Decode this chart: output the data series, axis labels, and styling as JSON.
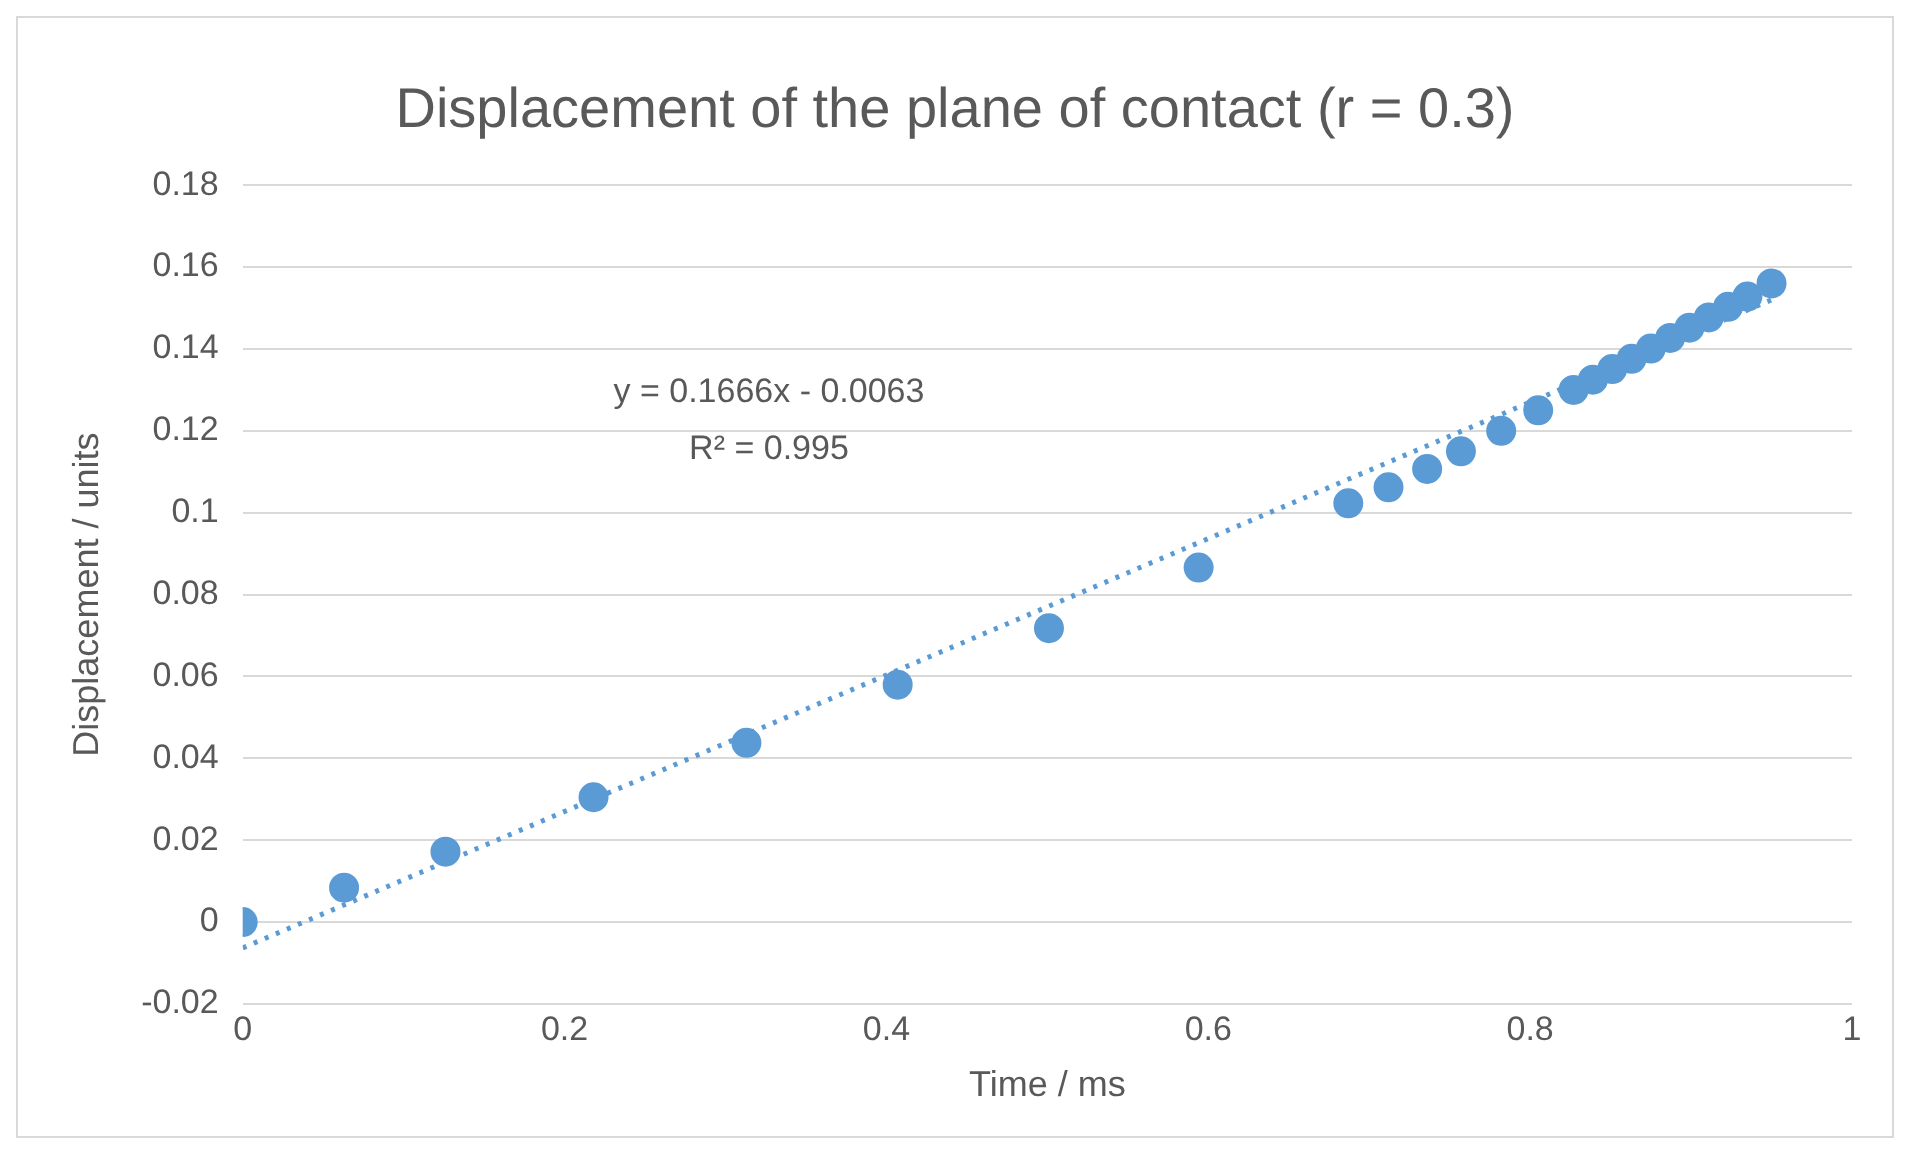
{
  "chart_data": {
    "type": "scatter",
    "title": "Displacement of the plane of contact (r = 0.3)",
    "xlabel": "Time / ms",
    "ylabel": "Displacement / units",
    "xlim": [
      0,
      1
    ],
    "xticks": [
      0,
      0.2,
      0.4,
      0.6,
      0.8,
      1
    ],
    "ylim": [
      -0.02,
      0.18
    ],
    "yticks": [
      -0.02,
      0,
      0.02,
      0.04,
      0.06,
      0.08,
      0.1,
      0.12,
      0.14,
      0.16,
      0.18
    ],
    "grid": "y",
    "legend": false,
    "annotations": [
      "y = 0.1666x - 0.0063",
      "R² = 0.995"
    ],
    "series": [
      {
        "marker": "circle",
        "color": "#5b9bd5",
        "x": [
          0,
          0.063,
          0.126,
          0.218,
          0.313,
          0.407,
          0.501,
          0.594,
          0.687,
          0.712,
          0.736,
          0.757,
          0.782,
          0.805,
          0.827,
          0.839,
          0.851,
          0.863,
          0.875,
          0.887,
          0.899,
          0.911,
          0.923,
          0.935,
          0.95
        ],
        "values": [
          0,
          0.0084,
          0.0172,
          0.0305,
          0.0438,
          0.058,
          0.0718,
          0.0866,
          0.1023,
          0.1062,
          0.1107,
          0.115,
          0.12,
          0.125,
          0.13,
          0.1325,
          0.1351,
          0.1376,
          0.1401,
          0.1427,
          0.1452,
          0.1477,
          0.1503,
          0.1528,
          0.156
        ]
      },
      {
        "type": "line",
        "color": "#5b9bd5",
        "line_style": "dotted",
        "x": [
          0,
          0.95
        ],
        "values": [
          -0.0063,
          0.152
        ]
      }
    ]
  }
}
